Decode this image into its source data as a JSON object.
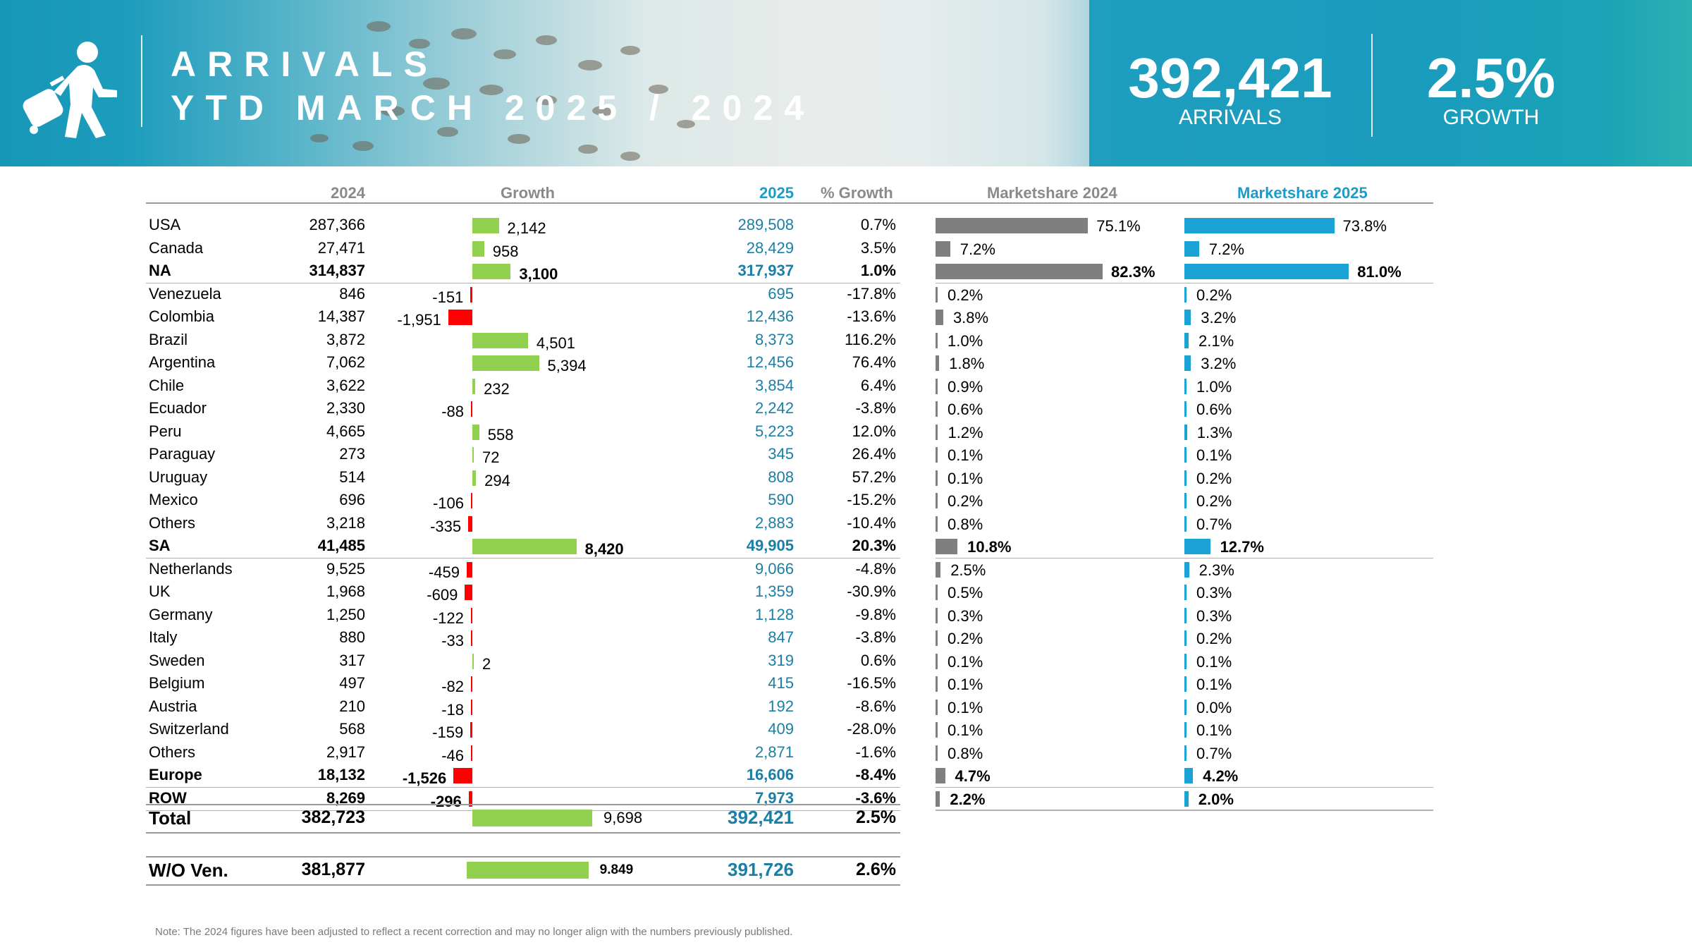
{
  "header": {
    "title_line1": "ARRIVALS",
    "title_line2": "YTD MARCH 2025 / 2024",
    "arrivals_value": "392,421",
    "arrivals_label": "ARRIVALS",
    "growth_value": "2.5%",
    "growth_label": "GROWTH",
    "icon": "traveler-with-suitcase-icon"
  },
  "table_headers": {
    "y2024": "2024",
    "growth": "Growth",
    "y2025": "2025",
    "pct_growth": "% Growth",
    "ms2024": "Marketshare 2024",
    "ms2025": "Marketshare 2025"
  },
  "colors": {
    "positive_growth": "#92d050",
    "negative_growth": "#ff0000",
    "ms2024_bar": "#7f7f7f",
    "ms2025_bar": "#1aa3d4",
    "value_2025_text": "#1a7fa6"
  },
  "chart_data": {
    "type": "table",
    "rows": [
      {
        "name": "USA",
        "v2024": "287,366",
        "growth": "2,142",
        "v2025": "289,508",
        "pct": "0.7%",
        "ms24": "75.1%",
        "ms25": "73.8%",
        "bold": false
      },
      {
        "name": "Canada",
        "v2024": "27,471",
        "growth": "958",
        "v2025": "28,429",
        "pct": "3.5%",
        "ms24": "7.2%",
        "ms25": "7.2%",
        "bold": false
      },
      {
        "name": "NA",
        "v2024": "314,837",
        "growth": "3,100",
        "v2025": "317,937",
        "pct": "1.0%",
        "ms24": "82.3%",
        "ms25": "81.0%",
        "bold": true
      },
      {
        "name": "Venezuela",
        "v2024": "846",
        "growth": "-151",
        "v2025": "695",
        "pct": "-17.8%",
        "ms24": "0.2%",
        "ms25": "0.2%",
        "bold": false
      },
      {
        "name": "Colombia",
        "v2024": "14,387",
        "growth": "-1,951",
        "v2025": "12,436",
        "pct": "-13.6%",
        "ms24": "3.8%",
        "ms25": "3.2%",
        "bold": false
      },
      {
        "name": "Brazil",
        "v2024": "3,872",
        "growth": "4,501",
        "v2025": "8,373",
        "pct": "116.2%",
        "ms24": "1.0%",
        "ms25": "2.1%",
        "bold": false
      },
      {
        "name": "Argentina",
        "v2024": "7,062",
        "growth": "5,394",
        "v2025": "12,456",
        "pct": "76.4%",
        "ms24": "1.8%",
        "ms25": "3.2%",
        "bold": false
      },
      {
        "name": "Chile",
        "v2024": "3,622",
        "growth": "232",
        "v2025": "3,854",
        "pct": "6.4%",
        "ms24": "0.9%",
        "ms25": "1.0%",
        "bold": false
      },
      {
        "name": "Ecuador",
        "v2024": "2,330",
        "growth": "-88",
        "v2025": "2,242",
        "pct": "-3.8%",
        "ms24": "0.6%",
        "ms25": "0.6%",
        "bold": false
      },
      {
        "name": "Peru",
        "v2024": "4,665",
        "growth": "558",
        "v2025": "5,223",
        "pct": "12.0%",
        "ms24": "1.2%",
        "ms25": "1.3%",
        "bold": false
      },
      {
        "name": "Paraguay",
        "v2024": "273",
        "growth": "72",
        "v2025": "345",
        "pct": "26.4%",
        "ms24": "0.1%",
        "ms25": "0.1%",
        "bold": false
      },
      {
        "name": "Uruguay",
        "v2024": "514",
        "growth": "294",
        "v2025": "808",
        "pct": "57.2%",
        "ms24": "0.1%",
        "ms25": "0.2%",
        "bold": false
      },
      {
        "name": "Mexico",
        "v2024": "696",
        "growth": "-106",
        "v2025": "590",
        "pct": "-15.2%",
        "ms24": "0.2%",
        "ms25": "0.2%",
        "bold": false
      },
      {
        "name": "Others",
        "v2024": "3,218",
        "growth": "-335",
        "v2025": "2,883",
        "pct": "-10.4%",
        "ms24": "0.8%",
        "ms25": "0.7%",
        "bold": false
      },
      {
        "name": "SA",
        "v2024": "41,485",
        "growth": "8,420",
        "v2025": "49,905",
        "pct": "20.3%",
        "ms24": "10.8%",
        "ms25": "12.7%",
        "bold": true
      },
      {
        "name": "Netherlands",
        "v2024": "9,525",
        "growth": "-459",
        "v2025": "9,066",
        "pct": "-4.8%",
        "ms24": "2.5%",
        "ms25": "2.3%",
        "bold": false
      },
      {
        "name": "UK",
        "v2024": "1,968",
        "growth": "-609",
        "v2025": "1,359",
        "pct": "-30.9%",
        "ms24": "0.5%",
        "ms25": "0.3%",
        "bold": false
      },
      {
        "name": "Germany",
        "v2024": "1,250",
        "growth": "-122",
        "v2025": "1,128",
        "pct": "-9.8%",
        "ms24": "0.3%",
        "ms25": "0.3%",
        "bold": false
      },
      {
        "name": "Italy",
        "v2024": "880",
        "growth": "-33",
        "v2025": "847",
        "pct": "-3.8%",
        "ms24": "0.2%",
        "ms25": "0.2%",
        "bold": false
      },
      {
        "name": "Sweden",
        "v2024": "317",
        "growth": "2",
        "v2025": "319",
        "pct": "0.6%",
        "ms24": "0.1%",
        "ms25": "0.1%",
        "bold": false
      },
      {
        "name": "Belgium",
        "v2024": "497",
        "growth": "-82",
        "v2025": "415",
        "pct": "-16.5%",
        "ms24": "0.1%",
        "ms25": "0.1%",
        "bold": false
      },
      {
        "name": "Austria",
        "v2024": "210",
        "growth": "-18",
        "v2025": "192",
        "pct": "-8.6%",
        "ms24": "0.1%",
        "ms25": "0.0%",
        "bold": false
      },
      {
        "name": "Switzerland",
        "v2024": "568",
        "growth": "-159",
        "v2025": "409",
        "pct": "-28.0%",
        "ms24": "0.1%",
        "ms25": "0.1%",
        "bold": false
      },
      {
        "name": "Others",
        "v2024": "2,917",
        "growth": "-46",
        "v2025": "2,871",
        "pct": "-1.6%",
        "ms24": "0.8%",
        "ms25": "0.7%",
        "bold": false
      },
      {
        "name": "Europe",
        "v2024": "18,132",
        "growth": "-1,526",
        "v2025": "16,606",
        "pct": "-8.4%",
        "ms24": "4.7%",
        "ms25": "4.2%",
        "bold": true
      },
      {
        "name": "ROW",
        "v2024": "8,269",
        "growth": "-296",
        "v2025": "7,973",
        "pct": "-3.6%",
        "ms24": "2.2%",
        "ms25": "2.0%",
        "bold": true
      }
    ],
    "total": {
      "name": "Total",
      "v2024": "382,723",
      "growth": "9,698",
      "v2025": "392,421",
      "pct": "2.5%"
    },
    "wo_ven": {
      "name": "W/O Ven.",
      "v2024": "381,877",
      "growth": "9.849",
      "v2025": "391,726",
      "pct": "2.6%"
    }
  },
  "note": "Note: The 2024 figures have been adjusted to reflect a recent correction and may no longer align with the numbers previously published."
}
